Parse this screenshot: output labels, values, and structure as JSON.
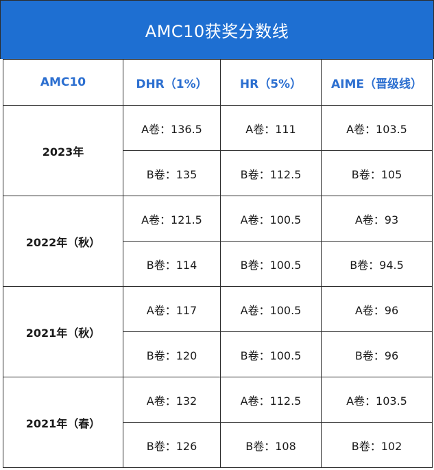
{
  "title": "AMC10获奖分数线",
  "headers": [
    "AMC10",
    "DHR（1%）",
    "HR（5%）",
    "AIME（晋级线）"
  ],
  "groups": [
    {
      "year": "2023年",
      "rows": [
        [
          "A卷：136.5",
          "A卷：111",
          "A卷：103.5"
        ],
        [
          "B卷：135",
          "B卷：112.5",
          "B卷：105"
        ]
      ]
    },
    {
      "year": "2022年（秋）",
      "rows": [
        [
          "A卷：121.5",
          "A卷：100.5",
          "A卷：93"
        ],
        [
          "B卷：114",
          "B卷：100.5",
          "B卷：94.5"
        ]
      ]
    },
    {
      "year": "2021年（秋）",
      "rows": [
        [
          "A卷：117",
          "A卷：100.5",
          "A卷：96"
        ],
        [
          "B卷：120",
          "B卷：100.5",
          "B卷：96"
        ]
      ]
    },
    {
      "year": "2021年（春）",
      "rows": [
        [
          "A卷：132",
          "A卷：112.5",
          "A卷：103.5"
        ],
        [
          "B卷：126",
          "B卷：108",
          "B卷：102"
        ]
      ]
    }
  ],
  "colors": {
    "title_bg": "#1E6FD2",
    "title_text": "#ffffff",
    "accent_text": "#2C6FD0",
    "border": "#2b2b2b"
  }
}
